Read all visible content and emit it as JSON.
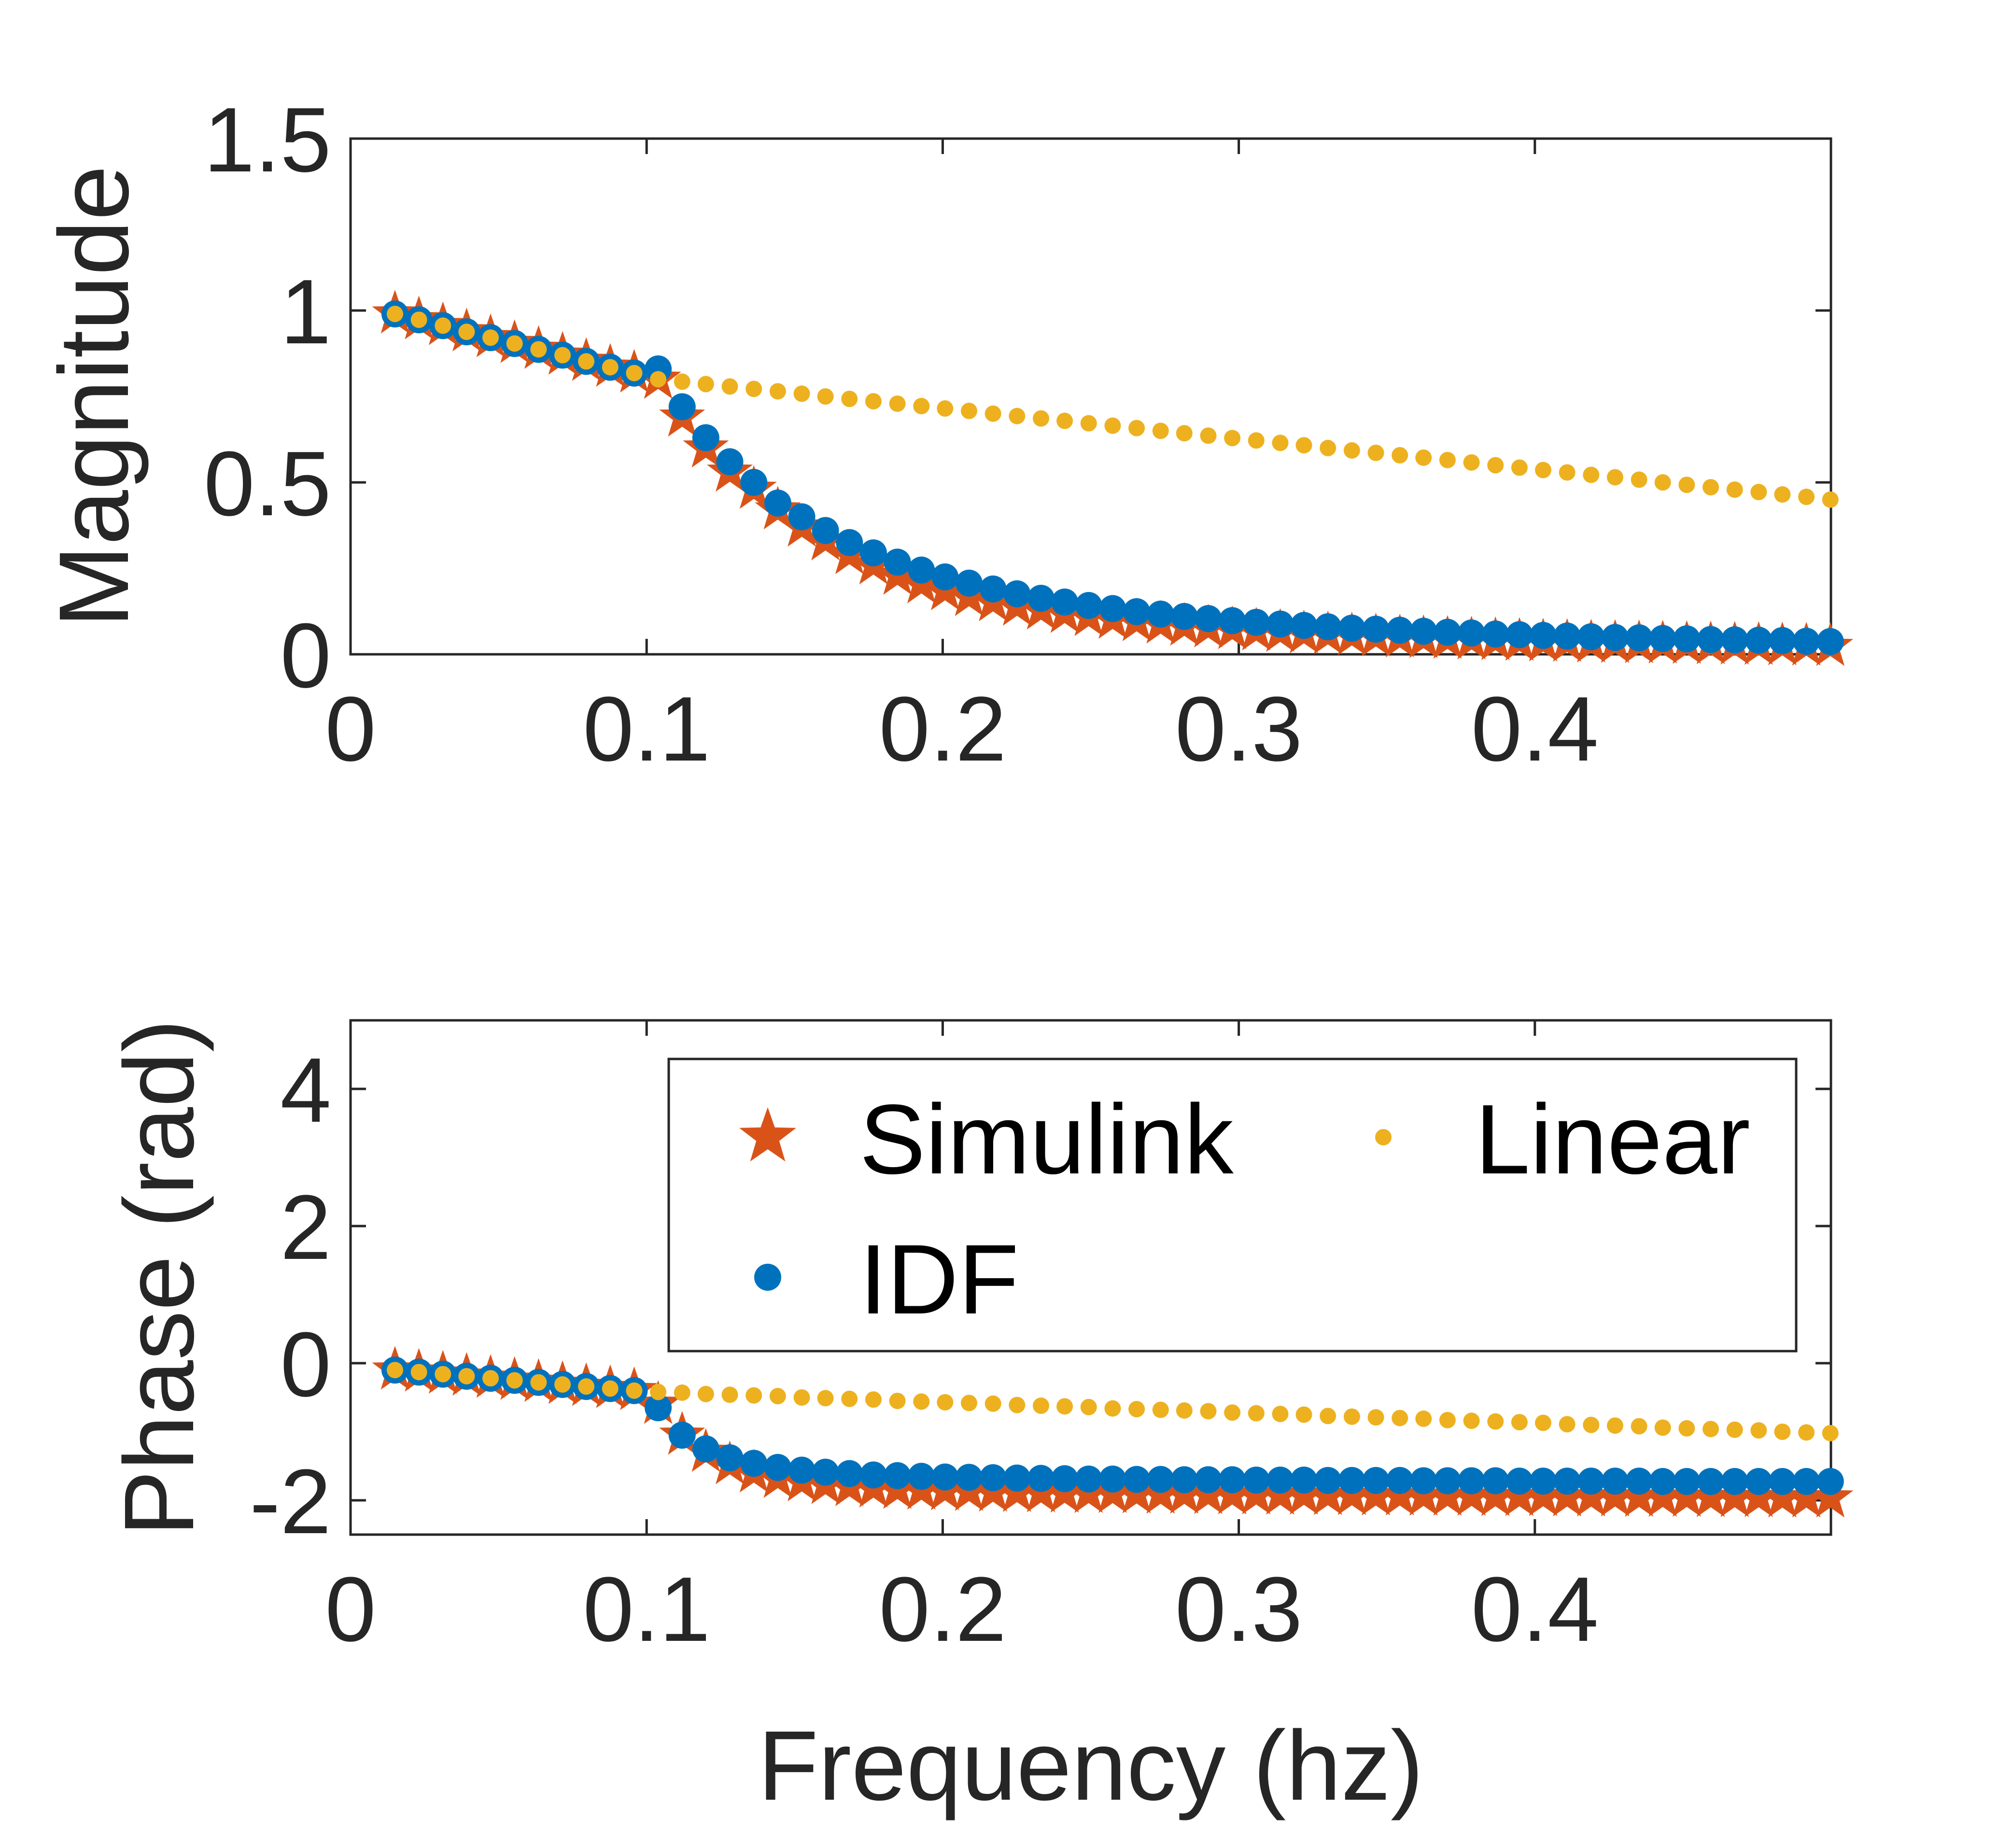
{
  "chart_data": [
    {
      "type": "scatter",
      "name": "magnitude",
      "ylabel": "Magnitude",
      "xlabel": "",
      "xlim": [
        0,
        0.5
      ],
      "ylim": [
        0,
        1.5
      ],
      "xticks": [
        0,
        0.1,
        0.2,
        0.3,
        0.4
      ],
      "xtick_labels": [
        "0",
        "0.1",
        "0.2",
        "0.3",
        "0.4"
      ],
      "yticks": [
        0,
        0.5,
        1,
        1.5
      ],
      "ytick_labels": [
        "0",
        "0.5",
        "1",
        "1.5"
      ],
      "grid": false,
      "x": [
        0.015,
        0.0231,
        0.0312,
        0.0392,
        0.0473,
        0.0554,
        0.0635,
        0.0716,
        0.0796,
        0.0877,
        0.0958,
        0.1039,
        0.112,
        0.12,
        0.1281,
        0.1362,
        0.1443,
        0.1524,
        0.1604,
        0.1685,
        0.1766,
        0.1847,
        0.1928,
        0.2008,
        0.2089,
        0.217,
        0.2251,
        0.2332,
        0.2412,
        0.2493,
        0.2574,
        0.2655,
        0.2736,
        0.2816,
        0.2897,
        0.2978,
        0.3059,
        0.314,
        0.322,
        0.3301,
        0.3382,
        0.3463,
        0.3544,
        0.3624,
        0.3705,
        0.3786,
        0.3867,
        0.3948,
        0.4028,
        0.4109,
        0.419,
        0.4271,
        0.4352,
        0.4432,
        0.4513,
        0.4594,
        0.4675,
        0.4756,
        0.4836,
        0.4917,
        0.4998
      ],
      "series": [
        {
          "name": "Simulink",
          "marker": "star",
          "color": "#D95319",
          "values": [
            0.99,
            0.973,
            0.956,
            0.938,
            0.921,
            0.904,
            0.887,
            0.87,
            0.852,
            0.835,
            0.818,
            0.8,
            0.69,
            0.6,
            0.53,
            0.48,
            0.42,
            0.37,
            0.33,
            0.29,
            0.26,
            0.23,
            0.205,
            0.185,
            0.168,
            0.153,
            0.14,
            0.129,
            0.119,
            0.11,
            0.102,
            0.095,
            0.088,
            0.082,
            0.077,
            0.072,
            0.068,
            0.064,
            0.06,
            0.057,
            0.054,
            0.051,
            0.048,
            0.046,
            0.044,
            0.042,
            0.04,
            0.038,
            0.036,
            0.035,
            0.033,
            0.032,
            0.031,
            0.03,
            0.029,
            0.028,
            0.027,
            0.026,
            0.025,
            0.024,
            0.023
          ]
        },
        {
          "name": "IDF",
          "marker": "dot",
          "color": "#0072BD",
          "values": [
            0.99,
            0.973,
            0.956,
            0.938,
            0.921,
            0.904,
            0.887,
            0.87,
            0.852,
            0.835,
            0.818,
            0.83,
            0.72,
            0.63,
            0.56,
            0.5,
            0.44,
            0.4,
            0.36,
            0.325,
            0.295,
            0.268,
            0.245,
            0.225,
            0.207,
            0.19,
            0.176,
            0.163,
            0.152,
            0.142,
            0.133,
            0.124,
            0.117,
            0.11,
            0.104,
            0.098,
            0.093,
            0.088,
            0.084,
            0.08,
            0.076,
            0.073,
            0.07,
            0.067,
            0.064,
            0.062,
            0.059,
            0.057,
            0.055,
            0.053,
            0.051,
            0.049,
            0.048,
            0.046,
            0.045,
            0.043,
            0.042,
            0.041,
            0.04,
            0.038,
            0.037
          ]
        },
        {
          "name": "Linear",
          "marker": "small-dot",
          "color": "#EDB120",
          "values": [
            0.99,
            0.973,
            0.956,
            0.938,
            0.921,
            0.904,
            0.887,
            0.87,
            0.852,
            0.835,
            0.818,
            0.8,
            0.793,
            0.786,
            0.779,
            0.772,
            0.765,
            0.758,
            0.75,
            0.743,
            0.736,
            0.729,
            0.722,
            0.715,
            0.708,
            0.7,
            0.693,
            0.686,
            0.679,
            0.672,
            0.665,
            0.658,
            0.65,
            0.643,
            0.636,
            0.629,
            0.622,
            0.615,
            0.608,
            0.6,
            0.593,
            0.586,
            0.579,
            0.572,
            0.565,
            0.558,
            0.55,
            0.543,
            0.536,
            0.529,
            0.522,
            0.515,
            0.508,
            0.5,
            0.493,
            0.486,
            0.479,
            0.472,
            0.465,
            0.458,
            0.45
          ]
        }
      ]
    },
    {
      "type": "scatter",
      "name": "phase",
      "ylabel": "Phase (rad)",
      "xlabel": "Frequency (hz)",
      "xlim": [
        0,
        0.5
      ],
      "ylim": [
        -2.5,
        5
      ],
      "xticks": [
        0,
        0.1,
        0.2,
        0.3,
        0.4
      ],
      "xtick_labels": [
        "0",
        "0.1",
        "0.2",
        "0.3",
        "0.4"
      ],
      "yticks": [
        -2,
        0,
        2,
        4
      ],
      "ytick_labels": [
        "-2",
        "0",
        "2",
        "4"
      ],
      "grid": false,
      "legend": {
        "placement": "top-right",
        "columns": 2,
        "entries": [
          "Simulink",
          "Linear",
          "IDF"
        ]
      },
      "x": [
        0.015,
        0.0231,
        0.0312,
        0.0392,
        0.0473,
        0.0554,
        0.0635,
        0.0716,
        0.0796,
        0.0877,
        0.0958,
        0.1039,
        0.112,
        0.12,
        0.1281,
        0.1362,
        0.1443,
        0.1524,
        0.1604,
        0.1685,
        0.1766,
        0.1847,
        0.1928,
        0.2008,
        0.2089,
        0.217,
        0.2251,
        0.2332,
        0.2412,
        0.2493,
        0.2574,
        0.2655,
        0.2736,
        0.2816,
        0.2897,
        0.2978,
        0.3059,
        0.314,
        0.322,
        0.3301,
        0.3382,
        0.3463,
        0.3544,
        0.3624,
        0.3705,
        0.3786,
        0.3867,
        0.3948,
        0.4028,
        0.4109,
        0.419,
        0.4271,
        0.4352,
        0.4432,
        0.4513,
        0.4594,
        0.4675,
        0.4756,
        0.4836,
        0.4917,
        0.4998
      ],
      "series": [
        {
          "name": "Simulink",
          "marker": "star",
          "color": "#D95319",
          "values": [
            -0.1,
            -0.13,
            -0.16,
            -0.19,
            -0.22,
            -0.25,
            -0.28,
            -0.31,
            -0.34,
            -0.37,
            -0.4,
            -0.6,
            -1.05,
            -1.3,
            -1.48,
            -1.6,
            -1.68,
            -1.73,
            -1.77,
            -1.8,
            -1.82,
            -1.84,
            -1.85,
            -1.86,
            -1.87,
            -1.88,
            -1.885,
            -1.89,
            -1.895,
            -1.9,
            -1.9,
            -1.905,
            -1.91,
            -1.91,
            -1.915,
            -1.92,
            -1.92,
            -1.925,
            -1.925,
            -1.93,
            -1.93,
            -1.935,
            -1.935,
            -1.94,
            -1.94,
            -1.94,
            -1.945,
            -1.945,
            -1.945,
            -1.95,
            -1.95,
            -1.95,
            -1.955,
            -1.955,
            -1.955,
            -1.96,
            -1.96,
            -1.96,
            -1.965,
            -1.965,
            -1.965
          ]
        },
        {
          "name": "IDF",
          "marker": "dot",
          "color": "#0072BD",
          "values": [
            -0.1,
            -0.13,
            -0.16,
            -0.19,
            -0.22,
            -0.25,
            -0.28,
            -0.31,
            -0.34,
            -0.37,
            -0.4,
            -0.65,
            -1.05,
            -1.25,
            -1.38,
            -1.46,
            -1.52,
            -1.56,
            -1.59,
            -1.61,
            -1.63,
            -1.64,
            -1.65,
            -1.66,
            -1.665,
            -1.67,
            -1.675,
            -1.68,
            -1.685,
            -1.69,
            -1.69,
            -1.695,
            -1.695,
            -1.7,
            -1.7,
            -1.7,
            -1.705,
            -1.705,
            -1.705,
            -1.71,
            -1.71,
            -1.71,
            -1.71,
            -1.715,
            -1.715,
            -1.715,
            -1.715,
            -1.72,
            -1.72,
            -1.72,
            -1.72,
            -1.72,
            -1.72,
            -1.725,
            -1.725,
            -1.725,
            -1.725,
            -1.725,
            -1.725,
            -1.725,
            -1.725
          ]
        },
        {
          "name": "Linear",
          "marker": "small-dot",
          "color": "#EDB120",
          "values": [
            -0.1,
            -0.13,
            -0.16,
            -0.19,
            -0.22,
            -0.25,
            -0.28,
            -0.31,
            -0.34,
            -0.37,
            -0.4,
            -0.42,
            -0.43,
            -0.45,
            -0.46,
            -0.47,
            -0.48,
            -0.5,
            -0.51,
            -0.52,
            -0.53,
            -0.55,
            -0.56,
            -0.57,
            -0.58,
            -0.59,
            -0.61,
            -0.62,
            -0.63,
            -0.64,
            -0.66,
            -0.67,
            -0.68,
            -0.69,
            -0.7,
            -0.72,
            -0.73,
            -0.74,
            -0.75,
            -0.77,
            -0.78,
            -0.79,
            -0.8,
            -0.81,
            -0.83,
            -0.84,
            -0.85,
            -0.86,
            -0.87,
            -0.89,
            -0.9,
            -0.91,
            -0.92,
            -0.94,
            -0.95,
            -0.96,
            -0.97,
            -0.98,
            -1,
            -1.01,
            -1.02
          ]
        }
      ]
    }
  ]
}
